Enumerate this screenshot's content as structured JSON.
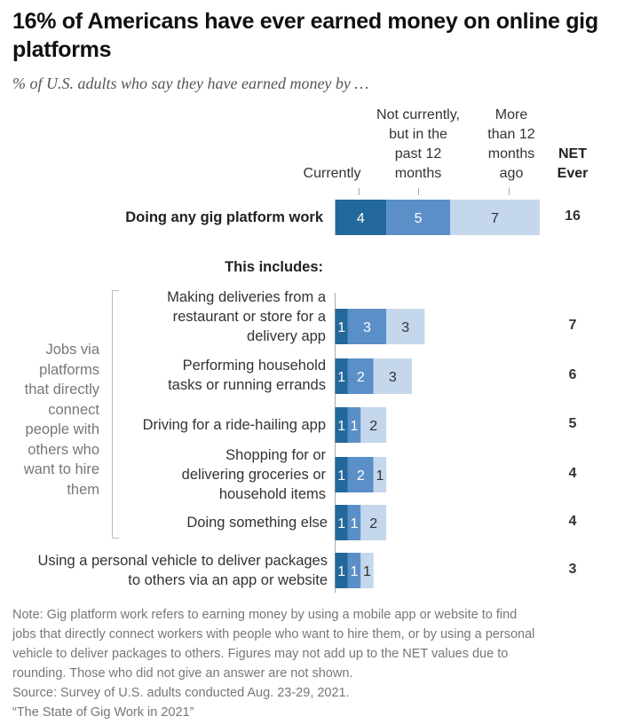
{
  "title": "16% of Americans have ever earned money on online gig platforms",
  "subtitle": "% of U.S. adults who say they have earned money by …",
  "column_headers": {
    "currently": "Currently",
    "past12": [
      "Not currently,",
      "but in the",
      "past 12",
      "months"
    ],
    "more12": [
      "More",
      "than 12",
      "months",
      "ago"
    ],
    "net": [
      "NET",
      "Ever"
    ]
  },
  "section_label": "This includes:",
  "group_label": [
    "Jobs via",
    "platforms",
    "that directly",
    "connect",
    "people with",
    "others who",
    "want to hire",
    "them"
  ],
  "colors": {
    "currently": "#23689a",
    "past12": "#5b8fc8",
    "more12": "#c4d7ec",
    "text_dark_segment": "#ffffff",
    "text_light_segment": "#333333"
  },
  "chart_data": {
    "type": "bar",
    "orientation": "horizontal",
    "stacked": true,
    "title": "16% of Americans have ever earned money on online gig platforms",
    "subtitle": "% of U.S. adults who say they have earned money by …",
    "series": [
      {
        "name": "Currently",
        "values": [
          4,
          1,
          1,
          1,
          1,
          1,
          1
        ]
      },
      {
        "name": "Not currently, but in the past 12 months",
        "values": [
          5,
          3,
          2,
          1,
          2,
          1,
          1
        ]
      },
      {
        "name": "More than 12 months ago",
        "values": [
          7,
          3,
          3,
          2,
          1,
          2,
          1
        ]
      }
    ],
    "net_ever": [
      16,
      7,
      6,
      5,
      4,
      4,
      3
    ],
    "categories": [
      [
        "Doing any gig platform work"
      ],
      [
        "Making deliveries from a",
        "restaurant or store for a",
        "delivery app"
      ],
      [
        "Performing household",
        "tasks or running errands"
      ],
      [
        "Driving for a ride-hailing app"
      ],
      [
        "Shopping for or",
        "delivering groceries or",
        "household items"
      ],
      [
        "Doing something else"
      ],
      [
        "Using a personal vehicle to deliver packages",
        "to others via an app or website"
      ]
    ],
    "legend": "column headers above bars",
    "grid": false
  },
  "notes": [
    "Note: Gig platform work refers to earning money by using a mobile app or website to find",
    "jobs that directly connect workers with people who want to hire them, or by using a personal",
    "vehicle to deliver packages to others. Figures may not add up to the NET values due to",
    "rounding. Those who did not give an answer are not shown.",
    "Source: Survey of U.S. adults conducted Aug. 23-29, 2021.",
    "“The State of Gig Work in 2021”"
  ]
}
